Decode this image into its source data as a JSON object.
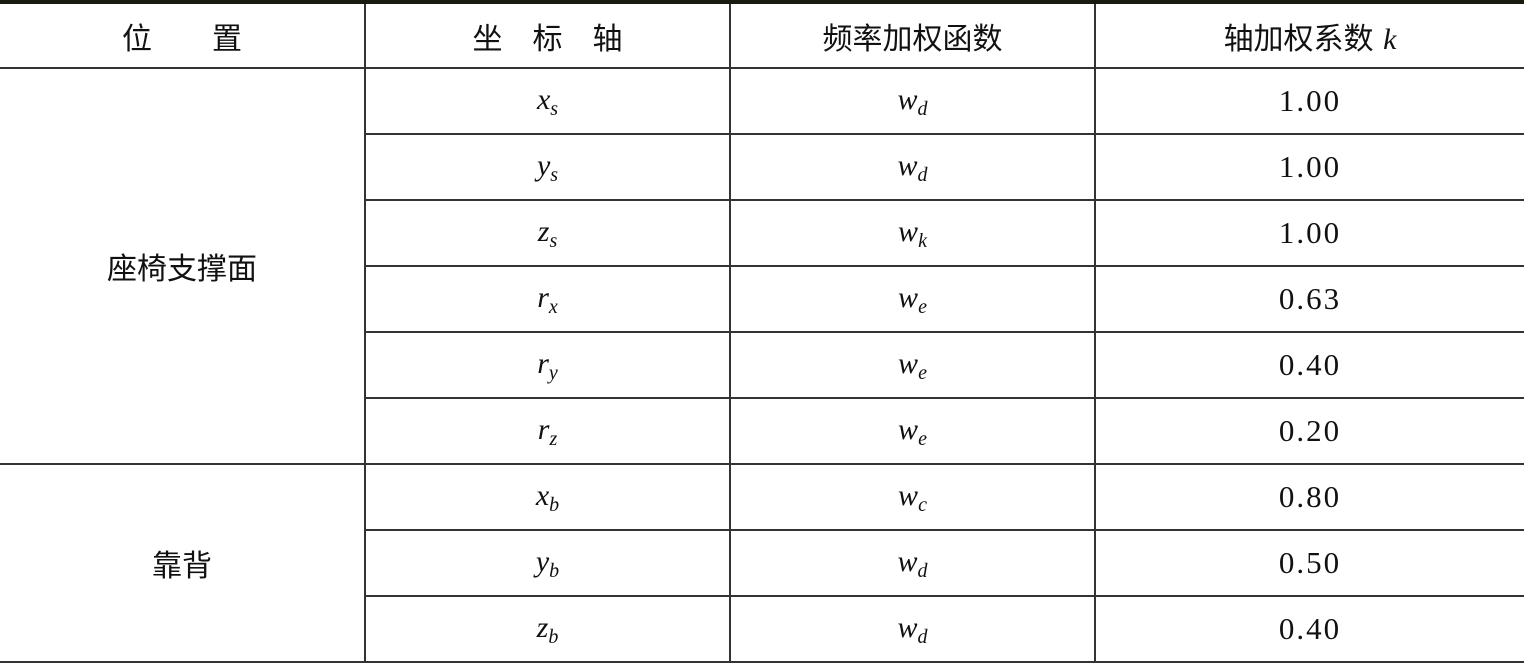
{
  "header": {
    "position": "位　　置",
    "axis": "坐　标　轴",
    "weighting": "频率加权函数",
    "factor": "轴加权系数",
    "factor_symbol": "k"
  },
  "groups": [
    {
      "position": "座椅支撑面",
      "rows": [
        {
          "axis": "x",
          "axis_sub": "s",
          "w": "w",
          "w_sub": "d",
          "k": "1.00"
        },
        {
          "axis": "y",
          "axis_sub": "s",
          "w": "w",
          "w_sub": "d",
          "k": "1.00"
        },
        {
          "axis": "z",
          "axis_sub": "s",
          "w": "w",
          "w_sub": "k",
          "k": "1.00"
        },
        {
          "axis": "r",
          "axis_sub": "x",
          "w": "w",
          "w_sub": "e",
          "k": "0.63"
        },
        {
          "axis": "r",
          "axis_sub": "y",
          "w": "w",
          "w_sub": "e",
          "k": "0.40"
        },
        {
          "axis": "r",
          "axis_sub": "z",
          "w": "w",
          "w_sub": "e",
          "k": "0.20"
        }
      ]
    },
    {
      "position": "靠背",
      "rows": [
        {
          "axis": "x",
          "axis_sub": "b",
          "w": "w",
          "w_sub": "c",
          "k": "0.80"
        },
        {
          "axis": "y",
          "axis_sub": "b",
          "w": "w",
          "w_sub": "d",
          "k": "0.50"
        },
        {
          "axis": "z",
          "axis_sub": "b",
          "w": "w",
          "w_sub": "d",
          "k": "0.40"
        }
      ]
    }
  ]
}
